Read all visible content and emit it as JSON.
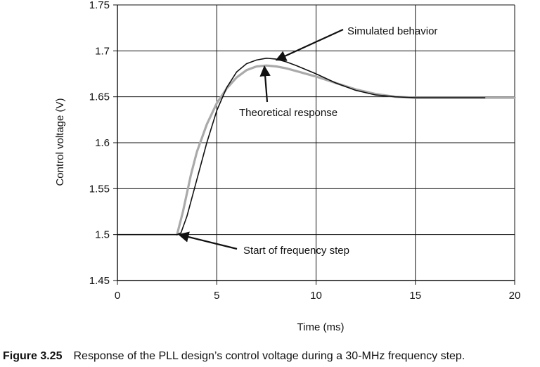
{
  "chart_data": {
    "type": "line",
    "title": "",
    "xlabel": "Time (ms)",
    "ylabel": "Control voltage (V)",
    "xlim": [
      0,
      20
    ],
    "ylim": [
      1.45,
      1.75
    ],
    "x_ticks": [
      0,
      5,
      10,
      15,
      20
    ],
    "y_ticks": [
      1.45,
      1.5,
      1.55,
      1.6,
      1.65,
      1.7,
      1.75
    ],
    "x_tick_labels": [
      "0",
      "5",
      "10",
      "15",
      "20"
    ],
    "y_tick_labels": [
      "1.45",
      "1.5",
      "1.55",
      "1.6",
      "1.65",
      "1.7",
      "1.75"
    ],
    "grid": true,
    "series": [
      {
        "id": "simulated",
        "color": "#111111",
        "x": [
          0,
          3.0,
          3.2,
          3.5,
          4.0,
          4.5,
          5.0,
          5.5,
          6.0,
          6.5,
          7.0,
          7.5,
          8.0,
          8.5,
          9.0,
          10.0,
          11.0,
          12.0,
          13.0,
          14.0,
          15.0,
          16.0,
          17.0,
          18.5
        ],
        "y": [
          1.5,
          1.5,
          1.502,
          1.52,
          1.56,
          1.6,
          1.635,
          1.66,
          1.677,
          1.686,
          1.69,
          1.692,
          1.691,
          1.688,
          1.684,
          1.675,
          1.665,
          1.657,
          1.652,
          1.65,
          1.649,
          1.649,
          1.649,
          1.649
        ]
      },
      {
        "id": "theoretical",
        "color": "#aaaaaa",
        "x": [
          3.0,
          3.3,
          3.7,
          4.0,
          4.5,
          5.0,
          5.5,
          6.0,
          6.5,
          7.0,
          7.5,
          8.0,
          8.5,
          9.0,
          10.0,
          11.0,
          12.0,
          13.0,
          14.0,
          15.0,
          16.0,
          17.0,
          18.0,
          19.0,
          20.0
        ],
        "y": [
          1.5,
          1.525,
          1.565,
          1.59,
          1.62,
          1.643,
          1.659,
          1.671,
          1.679,
          1.683,
          1.684,
          1.683,
          1.681,
          1.678,
          1.672,
          1.665,
          1.658,
          1.653,
          1.65,
          1.649,
          1.649,
          1.649,
          1.649,
          1.649,
          1.649
        ]
      }
    ],
    "annotations": [
      {
        "text": "Simulated behavior",
        "point": [
          8.0,
          1.69
        ]
      },
      {
        "text": "Theoretical response",
        "point": [
          7.4,
          1.683
        ]
      },
      {
        "text": "Start of frequency step",
        "point": [
          3.1,
          1.5
        ]
      }
    ]
  },
  "caption": {
    "number": "Figure 3.25",
    "text": "Response of the PLL design’s control voltage during a 30-MHz frequency step."
  }
}
